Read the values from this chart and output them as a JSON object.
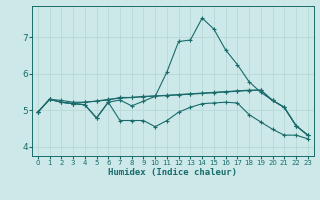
{
  "xlabel": "Humidex (Indice chaleur)",
  "background_color": "#cce8e8",
  "grid_color": "#b8d8d8",
  "line_color": "#1a6b6b",
  "xlim": [
    -0.5,
    23.5
  ],
  "ylim": [
    3.75,
    7.85
  ],
  "yticks": [
    4,
    5,
    6,
    7
  ],
  "xticks": [
    0,
    1,
    2,
    3,
    4,
    5,
    6,
    7,
    8,
    9,
    10,
    11,
    12,
    13,
    14,
    15,
    16,
    17,
    18,
    19,
    20,
    21,
    22,
    23
  ],
  "lines": [
    {
      "x": [
        0,
        1,
        2,
        3,
        4,
        5,
        6,
        7,
        8,
        9,
        10,
        11,
        12,
        13,
        14,
        15,
        16,
        17,
        18,
        19,
        20,
        21,
        22,
        23
      ],
      "y": [
        4.95,
        5.3,
        5.27,
        5.22,
        5.22,
        5.25,
        5.3,
        5.33,
        5.35,
        5.37,
        5.39,
        5.41,
        5.43,
        5.45,
        5.47,
        5.49,
        5.51,
        5.53,
        5.55,
        5.55,
        5.27,
        5.08,
        4.58,
        4.32
      ]
    },
    {
      "x": [
        0,
        1,
        2,
        3,
        4,
        5,
        6,
        7,
        8,
        9,
        10,
        11,
        12,
        13,
        14,
        15,
        16,
        17,
        18,
        19,
        20,
        21,
        22,
        23
      ],
      "y": [
        4.95,
        5.3,
        5.22,
        5.18,
        5.15,
        4.78,
        5.22,
        5.28,
        5.12,
        5.25,
        5.38,
        6.05,
        6.88,
        6.92,
        7.52,
        7.22,
        6.65,
        6.25,
        5.78,
        5.49,
        5.27,
        5.08,
        4.58,
        4.32
      ]
    },
    {
      "x": [
        0,
        1,
        2,
        3,
        4,
        5,
        6,
        7,
        8,
        9,
        10,
        11,
        12,
        13,
        14,
        15,
        16,
        17,
        18,
        19,
        20,
        21,
        22,
        23
      ],
      "y": [
        4.95,
        5.3,
        5.22,
        5.18,
        5.22,
        5.25,
        5.28,
        5.35,
        5.35,
        5.38,
        5.39,
        5.4,
        5.42,
        5.44,
        5.46,
        5.48,
        5.5,
        5.52,
        5.54,
        5.55,
        5.27,
        5.08,
        4.58,
        4.32
      ]
    },
    {
      "x": [
        0,
        1,
        2,
        3,
        4,
        5,
        6,
        7,
        8,
        9,
        10,
        11,
        12,
        13,
        14,
        15,
        16,
        17,
        18,
        19,
        20,
        21,
        22,
        23
      ],
      "y": [
        4.95,
        5.3,
        5.22,
        5.18,
        5.15,
        4.8,
        5.22,
        4.72,
        4.72,
        4.72,
        4.55,
        4.72,
        4.95,
        5.08,
        5.18,
        5.2,
        5.22,
        5.2,
        4.88,
        4.68,
        4.48,
        4.32,
        4.32,
        4.22
      ]
    }
  ]
}
